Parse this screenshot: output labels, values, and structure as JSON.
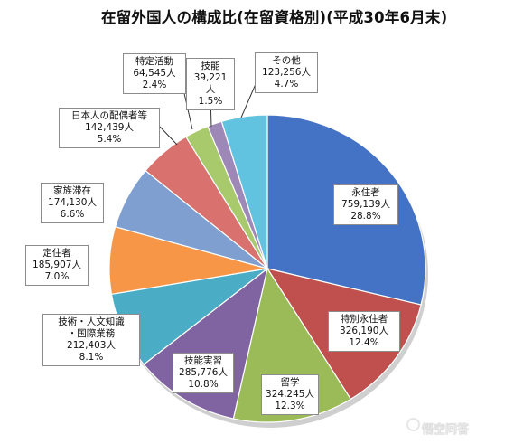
{
  "chart_data": {
    "type": "pie",
    "title": "在留外国人の構成比(在留資格別)(平成30年6月末)",
    "unit": "人",
    "slices": [
      {
        "name": "永住者",
        "value": 759139,
        "value_label": "759,139人",
        "percent_label": "28.8%",
        "color": "#4472c4"
      },
      {
        "name": "特別永住者",
        "value": 326190,
        "value_label": "326,190人",
        "percent_label": "12.4%",
        "color": "#c0504d"
      },
      {
        "name": "留学",
        "value": 324245,
        "value_label": "324,245人",
        "percent_label": "12.3%",
        "color": "#9bbb59"
      },
      {
        "name": "技能実習",
        "value": 285776,
        "value_label": "285,776人",
        "percent_label": "10.8%",
        "color": "#8064a2"
      },
      {
        "name": "技術・人文知識・国際業務",
        "name_lines": [
          "技術・人文知識",
          "・国際業務"
        ],
        "value": 212403,
        "value_label": "212,403人",
        "percent_label": "8.1%",
        "color": "#4bacc6"
      },
      {
        "name": "定住者",
        "value": 185907,
        "value_label": "185,907人",
        "percent_label": "7.0%",
        "color": "#f79646"
      },
      {
        "name": "家族滞在",
        "value": 174130,
        "value_label": "174,130人",
        "percent_label": "6.6%",
        "color": "#7f9fd1"
      },
      {
        "name": "日本人の配偶者等",
        "value": 142439,
        "value_label": "142,439人",
        "percent_label": "5.4%",
        "color": "#d9726f"
      },
      {
        "name": "特定活動",
        "value": 64545,
        "value_label": "64,545人",
        "percent_label": "2.4%",
        "color": "#a8c96c"
      },
      {
        "name": "技能",
        "value": 39221,
        "value_label": "39,221人",
        "percent_label": "1.5%",
        "color": "#9d88b8"
      },
      {
        "name": "その他",
        "value": 123256,
        "value_label": "123,256人",
        "percent_label": "4.7%",
        "color": "#62c3e0"
      }
    ]
  },
  "watermark": {
    "text": "悟空问答"
  }
}
